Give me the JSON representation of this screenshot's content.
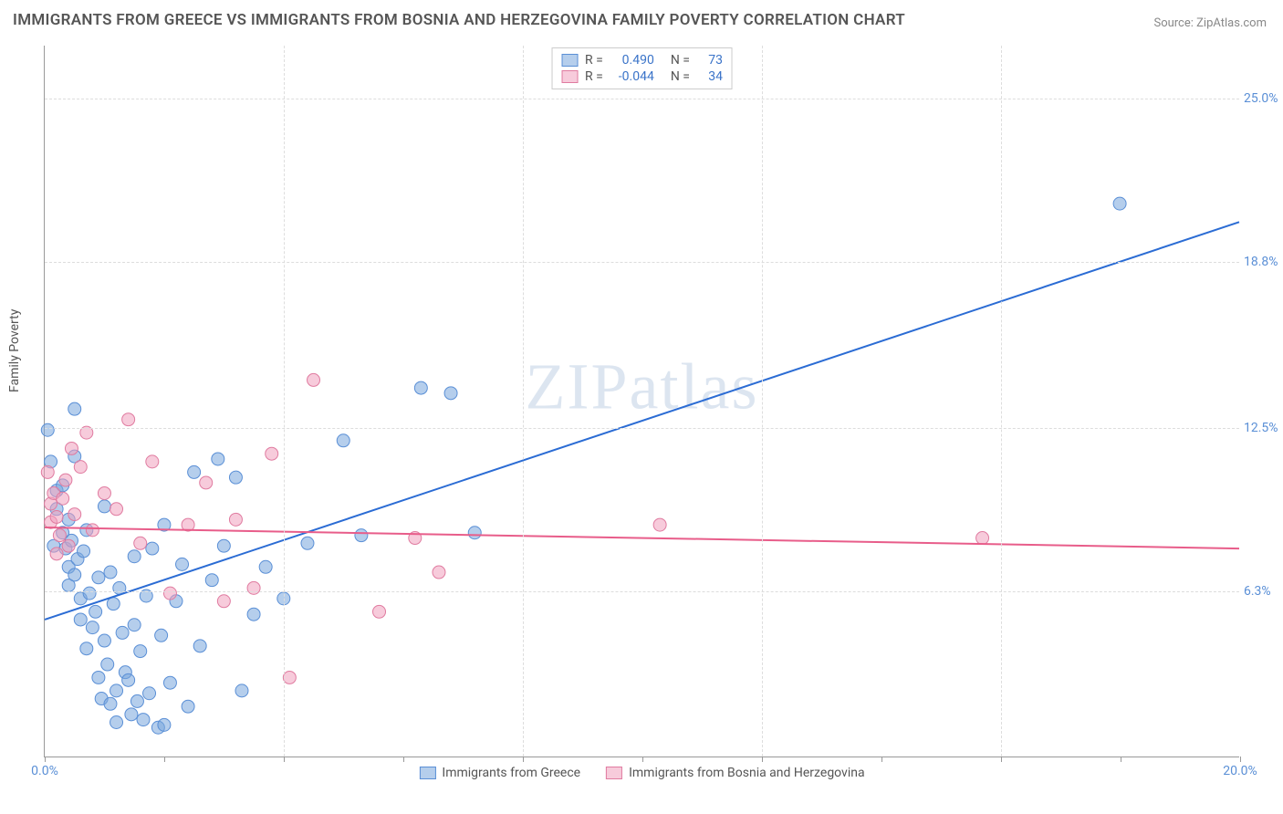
{
  "title": "IMMIGRANTS FROM GREECE VS IMMIGRANTS FROM BOSNIA AND HERZEGOVINA FAMILY POVERTY CORRELATION CHART",
  "source": "Source: ZipAtlas.com",
  "watermark": "ZIPatlas",
  "y_axis_label": "Family Poverty",
  "chart": {
    "type": "scatter",
    "xlim": [
      0,
      20
    ],
    "ylim": [
      0,
      27
    ],
    "background_color": "#ffffff",
    "grid_color": "#dddddd",
    "axis_color": "#999999",
    "tick_color": "#5a8fd6",
    "x_ticks": [
      {
        "value": 0,
        "label": "0.0%"
      },
      {
        "value": 4,
        "label": ""
      },
      {
        "value": 8,
        "label": ""
      },
      {
        "value": 12,
        "label": ""
      },
      {
        "value": 16,
        "label": ""
      },
      {
        "value": 20,
        "label": "20.0%"
      }
    ],
    "x_minor_ticks": [
      2,
      6,
      10,
      14,
      18
    ],
    "y_gridlines": [
      {
        "value": 6.3,
        "label": "6.3%"
      },
      {
        "value": 12.5,
        "label": "12.5%"
      },
      {
        "value": 18.8,
        "label": "18.8%"
      },
      {
        "value": 25.0,
        "label": "25.0%"
      }
    ],
    "series": [
      {
        "name": "Immigrants from Greece",
        "key": "greece",
        "marker_fill": "rgba(120,165,220,0.55)",
        "marker_stroke": "#5a8fd6",
        "marker_radius": 7,
        "line_color": "#2b6cd4",
        "line_width": 2,
        "correlation_R": "0.490",
        "correlation_N": "73",
        "trend": {
          "x1": 0,
          "y1": 5.2,
          "x2": 20,
          "y2": 20.3
        },
        "points": [
          [
            0.1,
            11.2
          ],
          [
            0.05,
            12.4
          ],
          [
            0.2,
            10.1
          ],
          [
            0.2,
            9.4
          ],
          [
            0.15,
            8.0
          ],
          [
            0.3,
            10.3
          ],
          [
            0.3,
            8.5
          ],
          [
            0.35,
            7.9
          ],
          [
            0.4,
            9.0
          ],
          [
            0.4,
            7.2
          ],
          [
            0.4,
            6.5
          ],
          [
            0.45,
            8.2
          ],
          [
            0.5,
            11.4
          ],
          [
            0.5,
            13.2
          ],
          [
            0.5,
            6.9
          ],
          [
            0.55,
            7.5
          ],
          [
            0.6,
            6.0
          ],
          [
            0.6,
            5.2
          ],
          [
            0.65,
            7.8
          ],
          [
            0.7,
            4.1
          ],
          [
            0.7,
            8.6
          ],
          [
            0.75,
            6.2
          ],
          [
            0.8,
            4.9
          ],
          [
            0.85,
            5.5
          ],
          [
            0.9,
            3.0
          ],
          [
            0.9,
            6.8
          ],
          [
            0.95,
            2.2
          ],
          [
            1.0,
            4.4
          ],
          [
            1.0,
            9.5
          ],
          [
            1.05,
            3.5
          ],
          [
            1.1,
            2.0
          ],
          [
            1.1,
            7.0
          ],
          [
            1.15,
            5.8
          ],
          [
            1.2,
            2.5
          ],
          [
            1.2,
            1.3
          ],
          [
            1.25,
            6.4
          ],
          [
            1.3,
            4.7
          ],
          [
            1.35,
            3.2
          ],
          [
            1.4,
            2.9
          ],
          [
            1.45,
            1.6
          ],
          [
            1.5,
            5.0
          ],
          [
            1.5,
            7.6
          ],
          [
            1.55,
            2.1
          ],
          [
            1.6,
            4.0
          ],
          [
            1.65,
            1.4
          ],
          [
            1.7,
            6.1
          ],
          [
            1.75,
            2.4
          ],
          [
            1.8,
            7.9
          ],
          [
            1.9,
            1.1
          ],
          [
            1.95,
            4.6
          ],
          [
            2.0,
            8.8
          ],
          [
            2.1,
            2.8
          ],
          [
            2.2,
            5.9
          ],
          [
            2.3,
            7.3
          ],
          [
            2.4,
            1.9
          ],
          [
            2.5,
            10.8
          ],
          [
            2.6,
            4.2
          ],
          [
            2.8,
            6.7
          ],
          [
            2.9,
            11.3
          ],
          [
            3.0,
            8.0
          ],
          [
            3.2,
            10.6
          ],
          [
            3.3,
            2.5
          ],
          [
            3.5,
            5.4
          ],
          [
            3.7,
            7.2
          ],
          [
            4.0,
            6.0
          ],
          [
            4.4,
            8.1
          ],
          [
            5.0,
            12.0
          ],
          [
            5.3,
            8.4
          ],
          [
            6.3,
            14.0
          ],
          [
            6.8,
            13.8
          ],
          [
            7.2,
            8.5
          ],
          [
            18.0,
            21.0
          ],
          [
            2.0,
            1.2
          ]
        ]
      },
      {
        "name": "Immigrants from Bosnia and Herzegovina",
        "key": "bosnia",
        "marker_fill": "rgba(240,160,190,0.55)",
        "marker_stroke": "#e07ba0",
        "marker_radius": 7,
        "line_color": "#e85d8a",
        "line_width": 2,
        "correlation_R": "-0.044",
        "correlation_N": "34",
        "trend": {
          "x1": 0,
          "y1": 8.7,
          "x2": 20,
          "y2": 7.9
        },
        "points": [
          [
            0.05,
            10.8
          ],
          [
            0.1,
            9.6
          ],
          [
            0.1,
            8.9
          ],
          [
            0.15,
            10.0
          ],
          [
            0.2,
            9.1
          ],
          [
            0.2,
            7.7
          ],
          [
            0.25,
            8.4
          ],
          [
            0.3,
            9.8
          ],
          [
            0.35,
            10.5
          ],
          [
            0.4,
            8.0
          ],
          [
            0.45,
            11.7
          ],
          [
            0.5,
            9.2
          ],
          [
            0.6,
            11.0
          ],
          [
            0.7,
            12.3
          ],
          [
            0.8,
            8.6
          ],
          [
            1.0,
            10.0
          ],
          [
            1.2,
            9.4
          ],
          [
            1.4,
            12.8
          ],
          [
            1.6,
            8.1
          ],
          [
            1.8,
            11.2
          ],
          [
            2.1,
            6.2
          ],
          [
            2.4,
            8.8
          ],
          [
            2.7,
            10.4
          ],
          [
            3.0,
            5.9
          ],
          [
            3.2,
            9.0
          ],
          [
            3.5,
            6.4
          ],
          [
            3.8,
            11.5
          ],
          [
            4.1,
            3.0
          ],
          [
            4.5,
            14.3
          ],
          [
            5.6,
            5.5
          ],
          [
            6.2,
            8.3
          ],
          [
            6.6,
            7.0
          ],
          [
            10.3,
            8.8
          ],
          [
            15.7,
            8.3
          ]
        ]
      }
    ],
    "legend_series_bottom": [
      {
        "swatch_fill": "rgba(120,165,220,0.55)",
        "swatch_stroke": "#5a8fd6",
        "label": "Immigrants from Greece"
      },
      {
        "swatch_fill": "rgba(240,160,190,0.55)",
        "swatch_stroke": "#e07ba0",
        "label": "Immigrants from Bosnia and Herzegovina"
      }
    ]
  }
}
